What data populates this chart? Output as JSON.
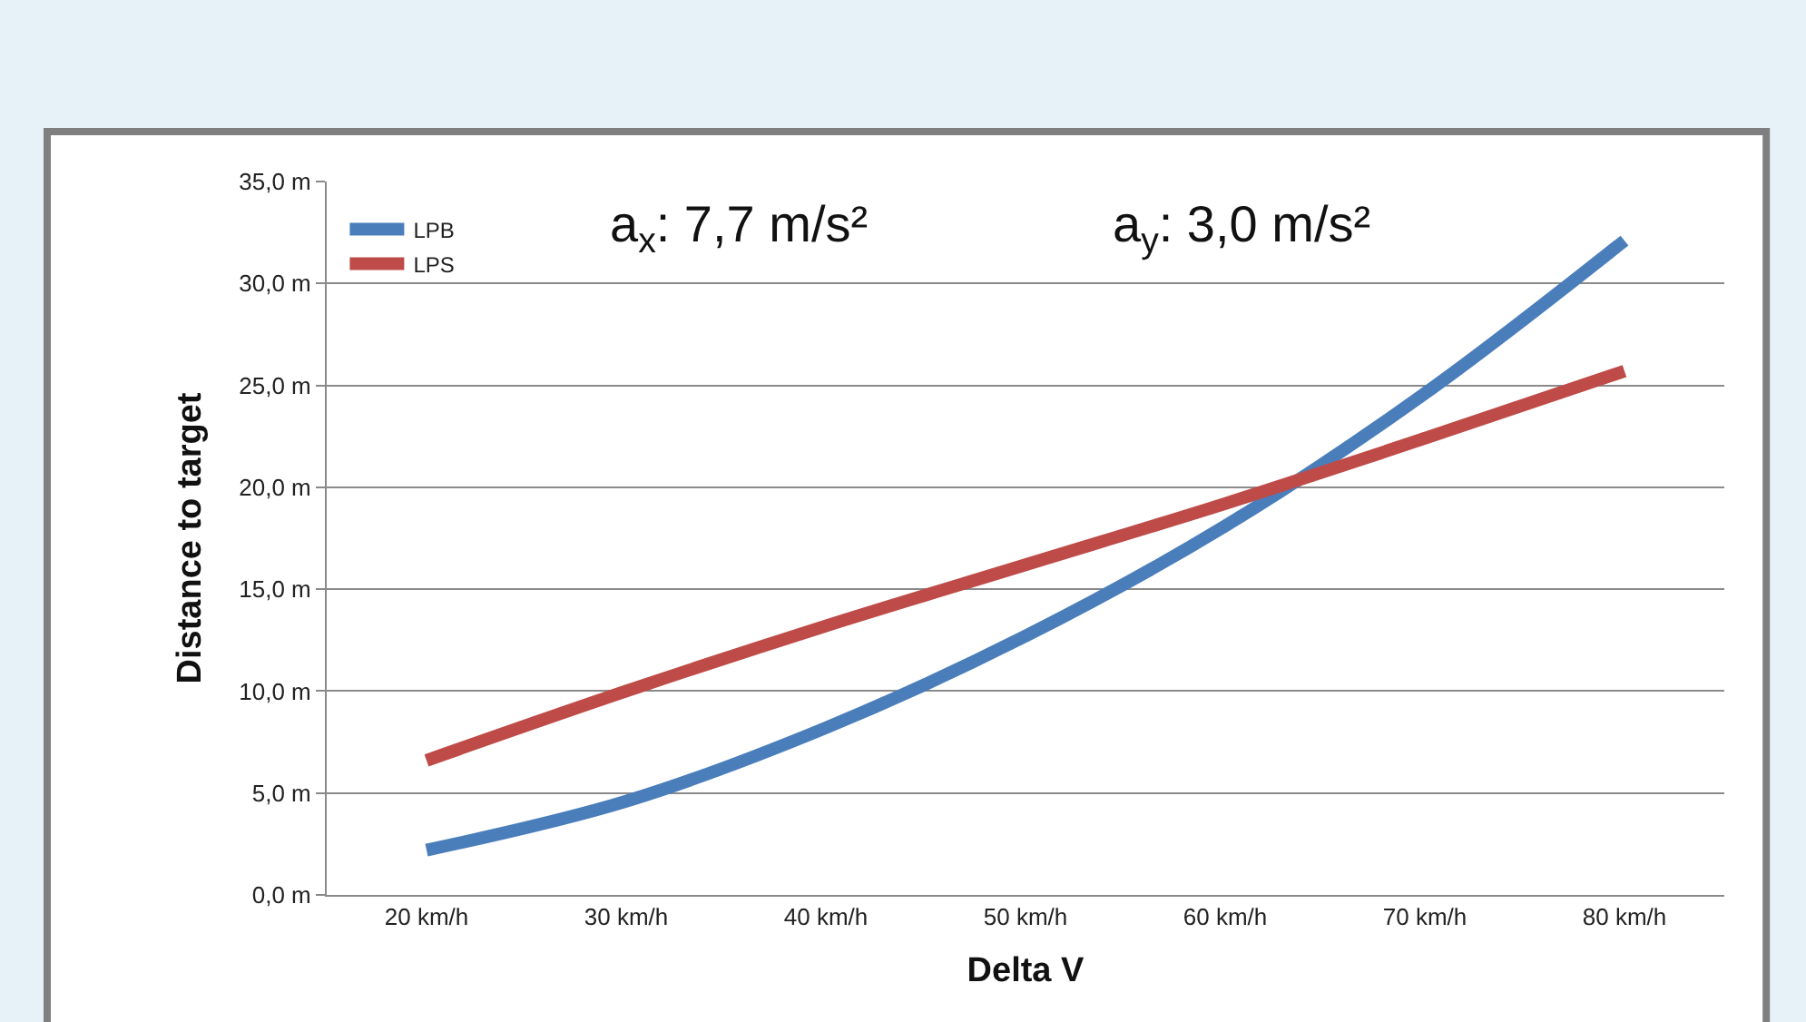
{
  "chart_data": {
    "type": "line",
    "title": "a$_{x}$: 7,7 m/s²",
    "subtitle": "a$_{y}$: 3,0 m/s²",
    "xlabel": "Delta V",
    "ylabel": "Distance to target",
    "categories": [
      "20 km/h",
      "30 km/h",
      "40 km/h",
      "50 km/h",
      "60 km/h",
      "70 km/h",
      "80 km/h"
    ],
    "series": [
      {
        "name": "LPB",
        "color": "#4a7ebb",
        "values": [
          2.2,
          4.6,
          8.2,
          12.7,
          18.1,
          24.6,
          32.1
        ]
      },
      {
        "name": "LPS",
        "color": "#be4b48",
        "values": [
          6.6,
          10.0,
          13.2,
          16.2,
          19.2,
          22.4,
          25.7
        ]
      }
    ],
    "ylim": [
      0,
      35
    ],
    "yticks": [
      {
        "value": 0,
        "label": "0,0 m"
      },
      {
        "value": 5,
        "label": "5,0 m"
      },
      {
        "value": 10,
        "label": "10,0 m"
      },
      {
        "value": 15,
        "label": "15,0 m"
      },
      {
        "value": 20,
        "label": "20,0 m"
      },
      {
        "value": 25,
        "label": "25,0 m"
      },
      {
        "value": 30,
        "label": "30,0 m"
      },
      {
        "value": 35,
        "label": "35,0 m"
      }
    ],
    "grid": "y",
    "legend": "top left",
    "marker": "none",
    "line_style": "solid"
  }
}
